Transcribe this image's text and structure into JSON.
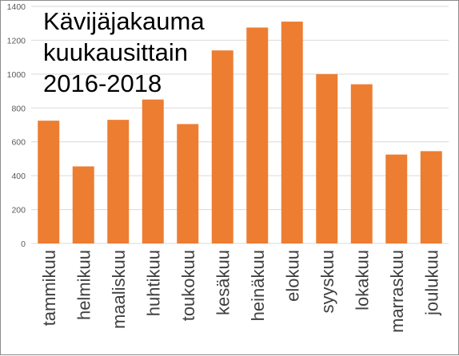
{
  "chart_data": {
    "type": "bar",
    "title_lines": [
      "Kävijäjakauma",
      "kuukausittain",
      "2016-2018"
    ],
    "categories": [
      "tammikuu",
      "helmikuu",
      "maaliskuu",
      "huhtikuu",
      "toukokuu",
      "kesäkuu",
      "heinäkuu",
      "elokuu",
      "syyskuu",
      "lokakuu",
      "marraskuu",
      "joulukuu"
    ],
    "values": [
      725,
      455,
      730,
      850,
      705,
      1140,
      1275,
      1310,
      1000,
      940,
      525,
      545
    ],
    "ylim": [
      0,
      1400
    ],
    "yticks": [
      0,
      200,
      400,
      600,
      800,
      1000,
      1200,
      1400
    ],
    "grid": true,
    "bar_color": "#ED7D31",
    "xlabel": "",
    "ylabel": ""
  }
}
